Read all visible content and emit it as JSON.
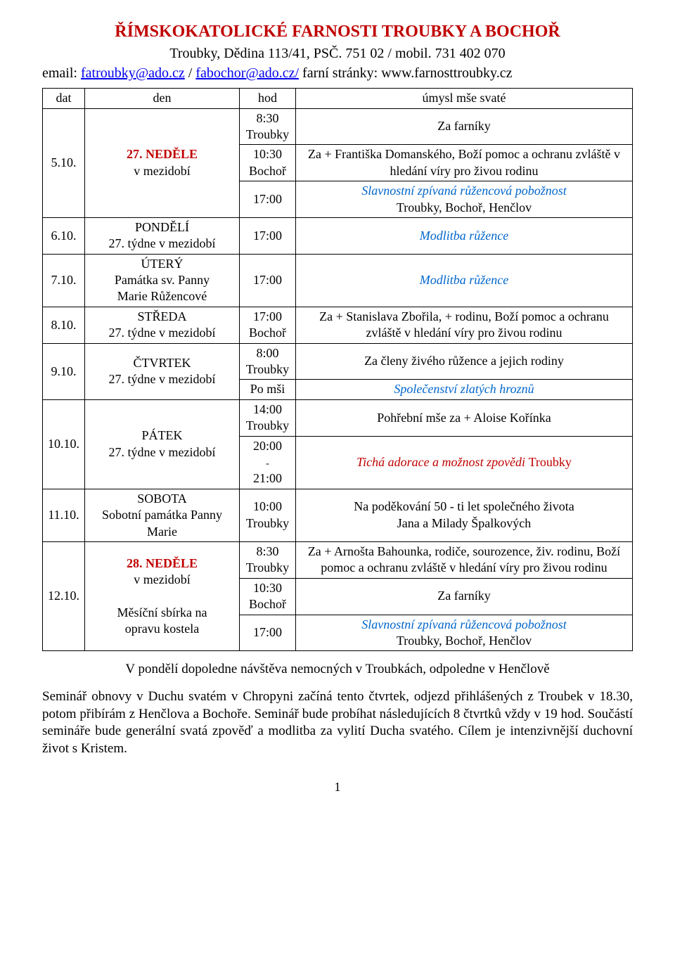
{
  "header": {
    "title": "ŘÍMSKOKATOLICKÉ FARNOSTI TROUBKY A BOCHOŘ",
    "address": "Troubky, Dědina 113/41, PSČ. 751 02 / mobil. 731 402 070",
    "emailLabel": "email: ",
    "email1": "fatroubky@ado.cz",
    "sep1": " / ",
    "email2": "fabochor@ado.cz/",
    "sep2": " farní stránky: www.farnosttroubky.cz"
  },
  "columns": {
    "dat": "dat",
    "den": "den",
    "hod": "hod",
    "intent": "úmysl mše svaté"
  },
  "r1": {
    "date": "5.10.",
    "dayA": "27. NEDĚLE",
    "dayB": "v mezidobí",
    "t1a": "8:30",
    "t1b": "Troubky",
    "i1": "Za farníky",
    "t2a": "10:30",
    "t2b": "Bochoř",
    "i2": "Za + Františka Domanského, Boží pomoc a ochranu zvláště v hledání víry pro živou rodinu",
    "t3": "17:00",
    "i3a": "Slavnostní zpívaná růžencová pobožnost",
    "i3b": "Troubky, Bochoř, Henčlov"
  },
  "r2": {
    "date": "6.10.",
    "dayA": "PONDĚLÍ",
    "dayB": "27. týdne v mezidobí",
    "t": "17:00",
    "i": "Modlitba růžence"
  },
  "r3": {
    "date": "7.10.",
    "dayA": "ÚTERÝ",
    "dayB": "Památka sv. Panny",
    "dayC": "Marie Růžencové",
    "t": "17:00",
    "i": "Modlitba růžence"
  },
  "r4": {
    "date": "8.10.",
    "dayA": "STŘEDA",
    "dayB": "27. týdne v mezidobí",
    "t1": "17:00",
    "t2": "Bochoř",
    "i": "Za + Stanislava Zbořila, + rodinu, Boží pomoc a ochranu zvláště v hledání víry pro živou rodinu"
  },
  "r5": {
    "date": "9.10.",
    "dayA": "ČTVRTEK",
    "dayB": "27. týdne v mezidobí",
    "t1a": "8:00",
    "t1b": "Troubky",
    "i1": "Za členy živého růžence a jejich rodiny",
    "t2": "Po mši",
    "i2": "Společenství zlatých hroznů"
  },
  "r6": {
    "date": "10.10.",
    "dayA": "PÁTEK",
    "dayB": "27. týdne v mezidobí",
    "t1a": "14:00",
    "t1b": "Troubky",
    "i1": "Pohřební mše za + Aloise Kořínka",
    "t2a": "20:00",
    "t2dash": "-",
    "t2b": "21:00",
    "i2a": "Tichá adorace a možnost zpovědi ",
    "i2b": "Troubky"
  },
  "r7": {
    "date": "11.10.",
    "dayA": "SOBOTA",
    "dayB": "Sobotní památka Panny",
    "dayC": "Marie",
    "t1": "10:00",
    "t2": "Troubky",
    "i1": "Na poděkování 50 - ti let společného života",
    "i2": "Jana a Milady Špalkových"
  },
  "r8": {
    "date": "12.10.",
    "dayA": "28. NEDĚLE",
    "dayB": "v mezidobí",
    "dayC": "Měsíční sbírka na",
    "dayD": "opravu kostela",
    "t1a": "8:30",
    "t1b": "Troubky",
    "i1": "Za + Arnošta Bahounka, rodiče, sourozence, živ. rodinu, Boží pomoc a ochranu zvláště v hledání víry pro živou rodinu",
    "t2a": "10:30",
    "t2b": "Bochoř",
    "i2": "Za farníky",
    "t3": "17:00",
    "i3a": "Slavnostní zpívaná růžencová pobožnost",
    "i3b": "Troubky, Bochoř, Henčlov"
  },
  "para1": "V pondělí dopoledne návštěva nemocných v Troubkách, odpoledne v Henčlově",
  "para2": "Seminář obnovy v Duchu svatém v Chropyni začíná tento čtvrtek, odjezd přihlášených z Troubek v 18.30, potom přibírám z Henčlova a Bochoře. Seminář bude probíhat následujících 8 čtvrtků vždy v 19 hod. Součástí semináře bude generální svatá zpověď a modlitba za vylití Ducha svatého. Cílem je intenzivnější duchovní život s Kristem.",
  "pageNum": "1",
  "colors": {
    "accent": "#c00000",
    "link": "#0000ee",
    "italic": "#0066cc"
  }
}
